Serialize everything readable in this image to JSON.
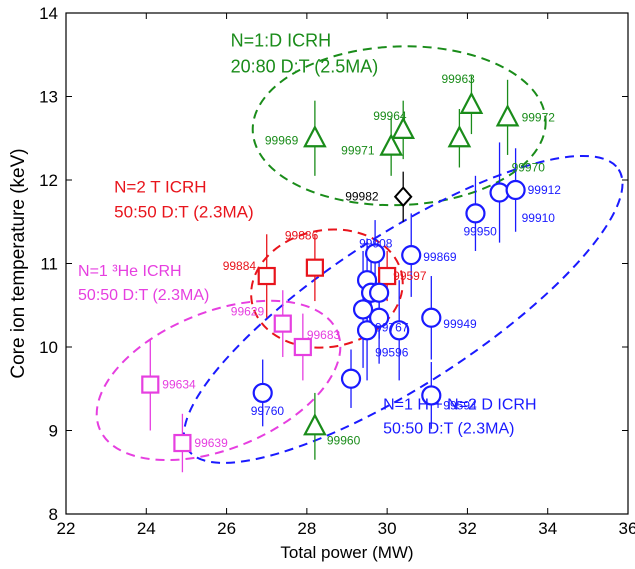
{
  "chart_data": {
    "type": "scatter",
    "xlabel": "Total power (MW)",
    "ylabel": "Core ion temperature (keV)",
    "xlim": [
      22,
      36
    ],
    "ylim": [
      8,
      14
    ],
    "xticks": [
      "22",
      "24",
      "26",
      "28",
      "30",
      "32",
      "34",
      "36"
    ],
    "yticks": [
      "8",
      "9",
      "10",
      "11",
      "12",
      "13",
      "14"
    ],
    "grid": false,
    "colors": {
      "green": "#1a8c1a",
      "red": "#e8141c",
      "magenta": "#e63fe0",
      "blue": "#1a1aff",
      "black": "#000000"
    },
    "annotations": [
      {
        "lines": [
          "N=1:D ICRH",
          "20:80 D:T (2.5MA)"
        ],
        "color": "green"
      },
      {
        "lines": [
          "N=2 T ICRH",
          "50:50 D:T (2.3MA)"
        ],
        "color": "red"
      },
      {
        "lines": [
          "N=1 ³He ICRH",
          "50:50 D:T (2.3MA)"
        ],
        "color": "magenta"
      },
      {
        "lines": [
          "N=1 H + N=2 D ICRH",
          "50:50 D:T (2.3MA)"
        ],
        "color": "blue"
      }
    ],
    "groups": [
      {
        "color": "green",
        "marker": "triangle",
        "ellipse": {
          "cx": 30.3,
          "cy": 12.65,
          "rx": 3.65,
          "ry": 0.95,
          "angle": -2
        },
        "points": [
          {
            "label": "99969",
            "x": 28.2,
            "y": 12.5,
            "err": 0.45
          },
          {
            "label": "99971",
            "x": 30.1,
            "y": 12.4,
            "err": 0.35
          },
          {
            "label": "99964",
            "x": 30.4,
            "y": 12.6,
            "err": 0.35
          },
          {
            "label": "99963",
            "x": 32.1,
            "y": 12.9,
            "err": 0.35
          },
          {
            "label": "",
            "x": 31.8,
            "y": 12.5,
            "err": 0.35
          },
          {
            "label": "99972",
            "x": 33.0,
            "y": 12.75,
            "err": 0.45
          },
          {
            "label": "99960",
            "x": 28.2,
            "y": 9.05,
            "err": 0.4
          }
        ]
      },
      {
        "color": "red",
        "marker": "square",
        "ellipse": {
          "cx": 28.5,
          "cy": 10.7,
          "rx": 1.9,
          "ry": 0.7,
          "angle": -10
        },
        "points": [
          {
            "label": "99884",
            "x": 27.0,
            "y": 10.85,
            "err": 0.5
          },
          {
            "label": "99886",
            "x": 28.2,
            "y": 10.95,
            "err": 0.4
          },
          {
            "label": "99597",
            "x": 30.0,
            "y": 10.85,
            "err": 0.3
          }
        ]
      },
      {
        "color": "magenta",
        "marker": "square",
        "ellipse": {
          "cx": 25.8,
          "cy": 9.6,
          "rx": 3.2,
          "ry": 0.82,
          "angle": -22
        },
        "points": [
          {
            "label": "99634",
            "x": 24.1,
            "y": 9.55,
            "err": 0.55
          },
          {
            "label": "99639",
            "x": 24.9,
            "y": 8.85,
            "err": 0.35
          },
          {
            "label": "99629",
            "x": 27.4,
            "y": 10.28,
            "err": 0.4
          },
          {
            "label": "99683",
            "x": 27.9,
            "y": 10.0,
            "err": 0.4
          }
        ]
      },
      {
        "color": "blue",
        "marker": "circle",
        "ellipse": {
          "cx": 30.4,
          "cy": 10.45,
          "rx": 6.4,
          "ry": 0.9,
          "angle": -33
        },
        "points": [
          {
            "label": "99760",
            "x": 26.9,
            "y": 9.45,
            "err": 0.4
          },
          {
            "label": "",
            "x": 29.1,
            "y": 9.62,
            "err": 0.35
          },
          {
            "label": "99767",
            "x": 29.4,
            "y": 10.45,
            "err": 0.7
          },
          {
            "label": "99596",
            "x": 29.5,
            "y": 10.2,
            "err": 0.6
          },
          {
            "label": "",
            "x": 29.5,
            "y": 10.8,
            "err": 0.5
          },
          {
            "label": "",
            "x": 29.6,
            "y": 10.65,
            "err": 0.5
          },
          {
            "label": "99908",
            "x": 29.7,
            "y": 11.12,
            "err": 0.4
          },
          {
            "label": "",
            "x": 29.8,
            "y": 10.65,
            "err": 0.55
          },
          {
            "label": "",
            "x": 29.8,
            "y": 10.35,
            "err": 0.55
          },
          {
            "label": "",
            "x": 30.3,
            "y": 10.2,
            "err": 0.6
          },
          {
            "label": "99869",
            "x": 30.6,
            "y": 11.1,
            "err": 0.5
          },
          {
            "label": "99949",
            "x": 31.1,
            "y": 10.35,
            "err": 0.5
          },
          {
            "label": "99594",
            "x": 31.1,
            "y": 9.42,
            "err": 0.4
          },
          {
            "label": "99950",
            "x": 32.2,
            "y": 11.6,
            "err": 0.45
          },
          {
            "label": "",
            "x": 32.8,
            "y": 11.85,
            "err": 0.6
          },
          {
            "label": "99912",
            "x": 33.2,
            "y": 11.88,
            "err": 0.5
          }
        ]
      },
      {
        "color": "black",
        "marker": "diamond",
        "ellipse": null,
        "points": [
          {
            "label": "99982",
            "x": 30.4,
            "y": 11.8,
            "err": 0.3
          }
        ]
      }
    ],
    "extra_labels": [
      {
        "label": "99970",
        "color": "green"
      },
      {
        "label": "99910",
        "color": "blue"
      }
    ]
  }
}
